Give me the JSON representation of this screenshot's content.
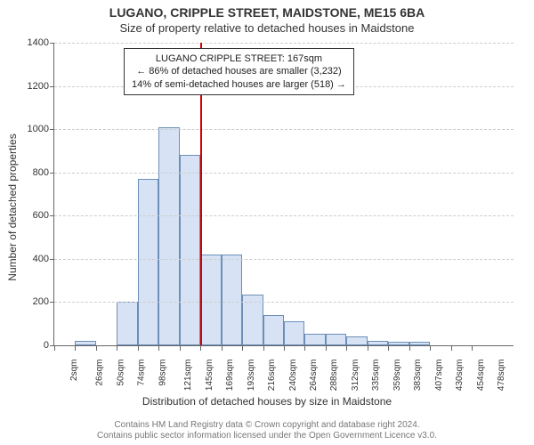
{
  "title": "LUGANO, CRIPPLE STREET, MAIDSTONE, ME15 6BA",
  "subtitle": "Size of property relative to detached houses in Maidstone",
  "chart": {
    "type": "bar",
    "ylabel": "Number of detached properties",
    "xlabel": "Distribution of detached houses by size in Maidstone",
    "ylim": [
      0,
      1400
    ],
    "ytick_step": 200,
    "yticks": [
      0,
      200,
      400,
      600,
      800,
      1000,
      1200,
      1400
    ],
    "xticks": [
      "2sqm",
      "26sqm",
      "50sqm",
      "74sqm",
      "98sqm",
      "121sqm",
      "145sqm",
      "169sqm",
      "193sqm",
      "216sqm",
      "240sqm",
      "264sqm",
      "288sqm",
      "312sqm",
      "335sqm",
      "359sqm",
      "383sqm",
      "407sqm",
      "430sqm",
      "454sqm",
      "478sqm"
    ],
    "values": [
      0,
      20,
      0,
      200,
      770,
      1010,
      880,
      420,
      420,
      235,
      140,
      110,
      55,
      55,
      40,
      20,
      15,
      15,
      0,
      0,
      0,
      0
    ],
    "bar_fill": "#d7e3f4",
    "bar_border": "#6b8fb8",
    "grid_color": "#cccccc",
    "bar_width_ratio": 1.0,
    "marker": {
      "position_bin": 7,
      "color": "#d00000"
    },
    "info_box": {
      "line1": "LUGANO CRIPPLE STREET: 167sqm",
      "line2": "← 86% of detached houses are smaller (3,232)",
      "line3": "14% of semi-detached houses are larger (518) →"
    }
  },
  "footer": {
    "line1": "Contains HM Land Registry data © Crown copyright and database right 2024.",
    "line2": "Contains public sector information licensed under the Open Government Licence v3.0."
  }
}
